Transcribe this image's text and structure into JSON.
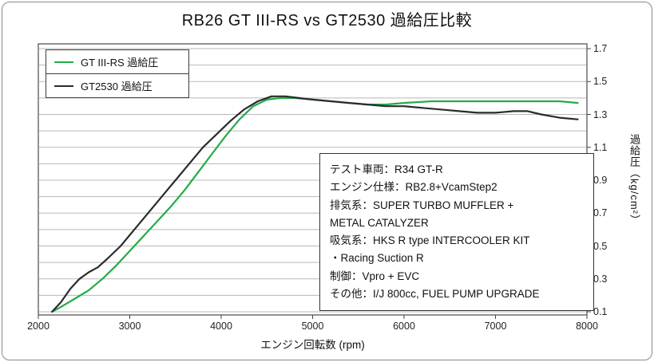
{
  "annotation": {
    "lines": [
      "テスト車両：R34 GT-R",
      "エンジン仕様：RB2.8+VcamStep2",
      "排気系：SUPER TURBO MUFFLER +",
      "METAL CATALYZER",
      "吸気系：HKS R type INTERCOOLER KIT",
      "・Racing Suction R",
      "制御：Vpro + EVC",
      "その他：I/J 800cc, FUEL PUMP UPGRADE"
    ]
  },
  "chart_data": {
    "type": "line",
    "title": "RB26 GT III-RS vs GT2530 過給圧比較",
    "xlabel": "エンジン回転数 (rpm)",
    "ylabel": "過給圧（kg/cm²）",
    "xlim": [
      2000,
      8000
    ],
    "ylim": [
      0.1,
      1.7
    ],
    "x_ticks": [
      2000,
      3000,
      4000,
      5000,
      6000,
      7000,
      8000
    ],
    "y_ticks": [
      0.1,
      0.3,
      0.5,
      0.7,
      0.9,
      1.1,
      1.3,
      1.5,
      1.7
    ],
    "grid": "horizontal, minor step 0.1",
    "legend_position": "top-left",
    "series": [
      {
        "name": "GT III-RS 過給圧",
        "color": "#22ac47",
        "points": [
          [
            2150,
            0.1
          ],
          [
            2250,
            0.13
          ],
          [
            2400,
            0.18
          ],
          [
            2550,
            0.23
          ],
          [
            2700,
            0.3
          ],
          [
            2850,
            0.38
          ],
          [
            3000,
            0.47
          ],
          [
            3150,
            0.56
          ],
          [
            3300,
            0.65
          ],
          [
            3450,
            0.74
          ],
          [
            3600,
            0.84
          ],
          [
            3750,
            0.95
          ],
          [
            3900,
            1.06
          ],
          [
            4050,
            1.17
          ],
          [
            4200,
            1.27
          ],
          [
            4350,
            1.35
          ],
          [
            4500,
            1.39
          ],
          [
            4650,
            1.4
          ],
          [
            4800,
            1.4
          ],
          [
            5000,
            1.39
          ],
          [
            5200,
            1.38
          ],
          [
            5400,
            1.37
          ],
          [
            5600,
            1.36
          ],
          [
            5800,
            1.36
          ],
          [
            6000,
            1.37
          ],
          [
            6300,
            1.38
          ],
          [
            6600,
            1.38
          ],
          [
            7000,
            1.38
          ],
          [
            7400,
            1.38
          ],
          [
            7700,
            1.38
          ],
          [
            7900,
            1.37
          ]
        ]
      },
      {
        "name": "GT2530 過給圧",
        "color": "#2b2b2b",
        "points": [
          [
            2150,
            0.1
          ],
          [
            2250,
            0.16
          ],
          [
            2350,
            0.24
          ],
          [
            2450,
            0.3
          ],
          [
            2550,
            0.34
          ],
          [
            2650,
            0.37
          ],
          [
            2750,
            0.42
          ],
          [
            2900,
            0.5
          ],
          [
            3050,
            0.6
          ],
          [
            3200,
            0.7
          ],
          [
            3350,
            0.8
          ],
          [
            3500,
            0.9
          ],
          [
            3650,
            1.0
          ],
          [
            3800,
            1.1
          ],
          [
            3950,
            1.18
          ],
          [
            4100,
            1.26
          ],
          [
            4250,
            1.33
          ],
          [
            4400,
            1.38
          ],
          [
            4550,
            1.41
          ],
          [
            4700,
            1.41
          ],
          [
            4850,
            1.4
          ],
          [
            5000,
            1.39
          ],
          [
            5200,
            1.38
          ],
          [
            5400,
            1.37
          ],
          [
            5600,
            1.36
          ],
          [
            5800,
            1.35
          ],
          [
            6000,
            1.35
          ],
          [
            6200,
            1.34
          ],
          [
            6400,
            1.33
          ],
          [
            6600,
            1.32
          ],
          [
            6800,
            1.31
          ],
          [
            7000,
            1.31
          ],
          [
            7200,
            1.32
          ],
          [
            7350,
            1.32
          ],
          [
            7500,
            1.3
          ],
          [
            7700,
            1.28
          ],
          [
            7900,
            1.27
          ]
        ]
      }
    ]
  }
}
